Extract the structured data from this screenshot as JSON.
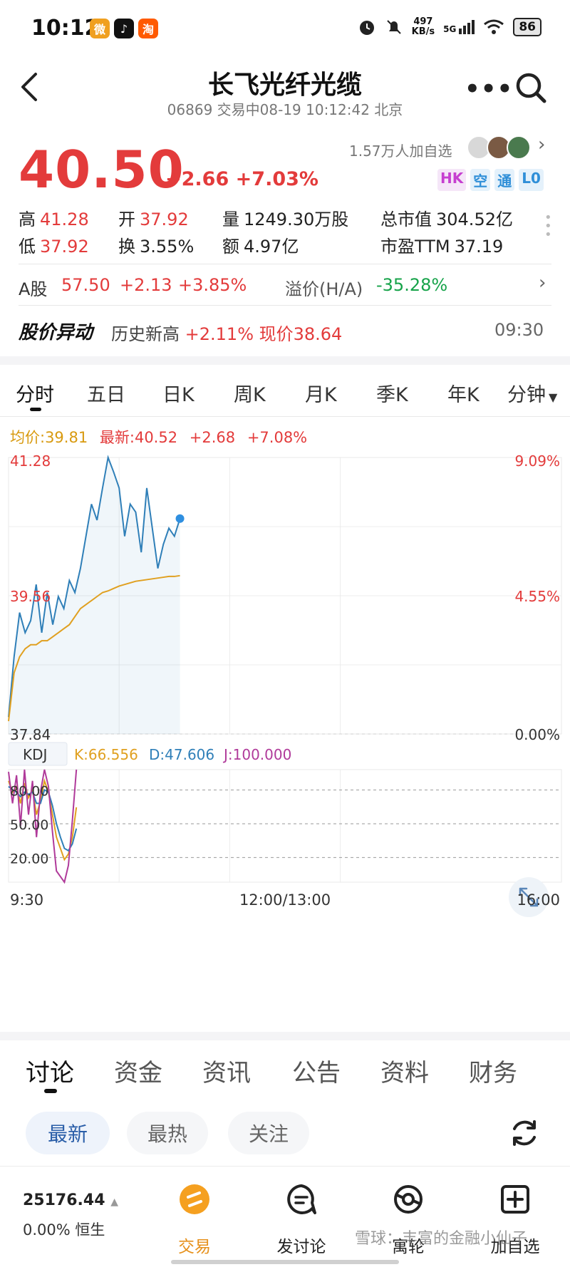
{
  "status_bar": {
    "time": "10:12",
    "app_icons": [
      {
        "name": "weibo",
        "glyph": "微",
        "color": "#f0a020"
      },
      {
        "name": "tiktok",
        "glyph": "♪",
        "color": "#111111"
      },
      {
        "name": "taobao",
        "glyph": "淘",
        "color": "#ff5a00"
      }
    ],
    "net_speed": "497\nKB/s",
    "net_speed_top": "497",
    "net_speed_bottom": "KB/s",
    "signal": "5G",
    "battery": "86"
  },
  "header": {
    "title": "长飞光纤光缆",
    "subtitle": "06869 交易中08-19 10:12:42 北京"
  },
  "quote": {
    "price": "40.50",
    "change": "+2.66",
    "change_pct": "+7.03%",
    "watch_count": "1.57万人加自选",
    "tags": [
      {
        "text": "HK",
        "color": "#c63fd0",
        "bg": "#f5e6f8"
      },
      {
        "text": "空",
        "color": "#2f8fd8",
        "bg": "#e4f1fb"
      },
      {
        "text": "通",
        "color": "#2f8fd8",
        "bg": "#e4f1fb"
      },
      {
        "text": "L0",
        "color": "#2f8fd8",
        "bg": "#e4f1fb"
      }
    ]
  },
  "stats": {
    "high_label": "高",
    "high": "41.28",
    "open_label": "开",
    "open": "37.92",
    "volume_label": "量",
    "volume": "1249.30万股",
    "mcap_label": "总市值",
    "mcap": "304.52亿",
    "low_label": "低",
    "low": "37.92",
    "turnover_label": "换",
    "turnover": "3.55%",
    "amount_label": "额",
    "amount": "4.97亿",
    "pe_label": "市盈TTM",
    "pe": "37.19"
  },
  "a_share": {
    "label": "A股",
    "price": "57.50",
    "change": "+2.13",
    "change_pct": "+3.85%",
    "premium_label": "溢价(H/A)",
    "premium": "-35.28%"
  },
  "alert": {
    "title": "股价异动",
    "text_prefix": "历史新高",
    "text_value": "+2.11% 现价38.64",
    "time": "09:30"
  },
  "period_tabs": [
    "分时",
    "五日",
    "日K",
    "周K",
    "月K",
    "季K",
    "年K",
    "分钟"
  ],
  "chart_header": {
    "avg": "均价:39.81",
    "latest": "最新:40.52",
    "change": "+2.68",
    "pct": "+7.08%"
  },
  "chart_data": [
    {
      "type": "line",
      "ylim": [
        37.84,
        41.28
      ],
      "y_left_ticks": [
        "41.28",
        "39.56",
        "37.84"
      ],
      "y_right_ticks": [
        "9.09%",
        "4.55%",
        "0.00%"
      ],
      "x_ticks": [
        "9:30",
        "12:00/13:00",
        "16:00"
      ],
      "grid": true,
      "series": [
        {
          "color": "#2f7fb8",
          "values": [
            38.05,
            38.8,
            39.35,
            39.1,
            39.25,
            39.7,
            39.1,
            39.6,
            39.2,
            39.55,
            39.4,
            39.75,
            39.6,
            39.9,
            40.3,
            40.7,
            40.5,
            40.9,
            41.28,
            41.1,
            40.9,
            40.3,
            40.7,
            40.6,
            40.1,
            40.9,
            40.4,
            39.9,
            40.2,
            40.4,
            40.3,
            40.52
          ]
        },
        {
          "color": "#e0a020",
          "values": [
            38.0,
            38.6,
            38.8,
            38.9,
            38.95,
            38.95,
            39.0,
            39.0,
            39.05,
            39.1,
            39.15,
            39.2,
            39.3,
            39.4,
            39.45,
            39.5,
            39.55,
            39.6,
            39.62,
            39.65,
            39.68,
            39.7,
            39.72,
            39.74,
            39.75,
            39.76,
            39.77,
            39.78,
            39.79,
            39.8,
            39.8,
            39.81
          ]
        }
      ]
    },
    {
      "type": "line",
      "title": "KDJ",
      "legend": [
        "K:66.556",
        "D:47.606",
        "J:100.000"
      ],
      "ylim": [
        0,
        100
      ],
      "y_ticks": [
        "80.00",
        "50.00",
        "20.00"
      ],
      "series": [
        {
          "name": "K:66.556",
          "color": "#e0a020",
          "values": [
            90,
            80,
            85,
            70,
            88,
            75,
            82,
            60,
            72,
            90,
            80,
            60,
            40,
            30,
            20,
            25,
            40,
            66.556
          ]
        },
        {
          "name": "D:47.606",
          "color": "#2f7fb8",
          "values": [
            85,
            82,
            80,
            76,
            80,
            78,
            80,
            70,
            70,
            82,
            80,
            68,
            52,
            40,
            30,
            28,
            34,
            47.606
          ]
        },
        {
          "name": "J:100.000",
          "color": "#b03a9a",
          "values": [
            98,
            70,
            95,
            50,
            100,
            60,
            90,
            40,
            80,
            100,
            85,
            45,
            10,
            5,
            0,
            15,
            55,
            100
          ]
        }
      ]
    }
  ],
  "discussion_tabs": [
    "讨论",
    "资金",
    "资讯",
    "公告",
    "资料",
    "财务"
  ],
  "filter_pills": [
    "最新",
    "最热",
    "关注"
  ],
  "bottom": {
    "index_value": "25176.44",
    "index_change": "0.00%",
    "index_name": "恒生",
    "nav": [
      {
        "label": "交易"
      },
      {
        "label": "发讨论"
      },
      {
        "label": "寓轮"
      },
      {
        "label": "加自选"
      }
    ]
  },
  "watermark": "雪球：丰富的金融小仙子"
}
